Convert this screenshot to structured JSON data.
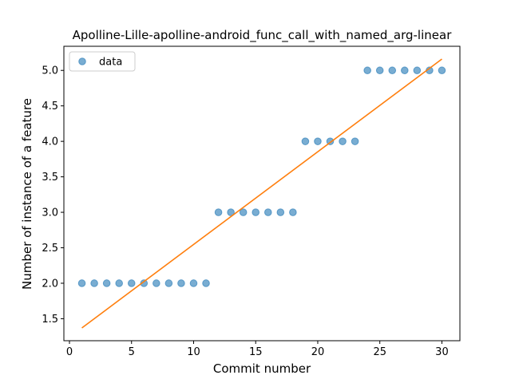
{
  "chart_data": {
    "type": "scatter",
    "title": "Apolline-Lille-apolline-android_func_call_with_named_arg-linear",
    "xlabel": "Commit number",
    "ylabel": "Number of instance of a feature",
    "xlim": [
      -0.45,
      31.45
    ],
    "ylim": [
      1.19,
      5.34
    ],
    "xticks": [
      0,
      5,
      10,
      15,
      20,
      25,
      30
    ],
    "xtick_labels": [
      "0",
      "5",
      "10",
      "15",
      "20",
      "25",
      "30"
    ],
    "yticks": [
      1.5,
      2.0,
      2.5,
      3.0,
      3.5,
      4.0,
      4.5,
      5.0
    ],
    "ytick_labels": [
      "1.5",
      "2.0",
      "2.5",
      "3.0",
      "3.5",
      "4.0",
      "4.5",
      "5.0"
    ],
    "grid": false,
    "legend_position": "top-left",
    "series": [
      {
        "name": "data",
        "kind": "points",
        "color": "#1f77b4",
        "x": [
          1,
          2,
          3,
          4,
          5,
          6,
          7,
          8,
          9,
          10,
          11,
          12,
          13,
          14,
          15,
          16,
          17,
          18,
          19,
          20,
          21,
          22,
          23,
          24,
          25,
          26,
          27,
          28,
          29,
          30
        ],
        "y": [
          2,
          2,
          2,
          2,
          2,
          2,
          2,
          2,
          2,
          2,
          2,
          3,
          3,
          3,
          3,
          3,
          3,
          3,
          4,
          4,
          4,
          4,
          4,
          5,
          5,
          5,
          5,
          5,
          5,
          5
        ]
      },
      {
        "kind": "line",
        "color": "#ff7f0e",
        "x": [
          1,
          30
        ],
        "y": [
          1.37,
          5.16
        ]
      }
    ]
  }
}
